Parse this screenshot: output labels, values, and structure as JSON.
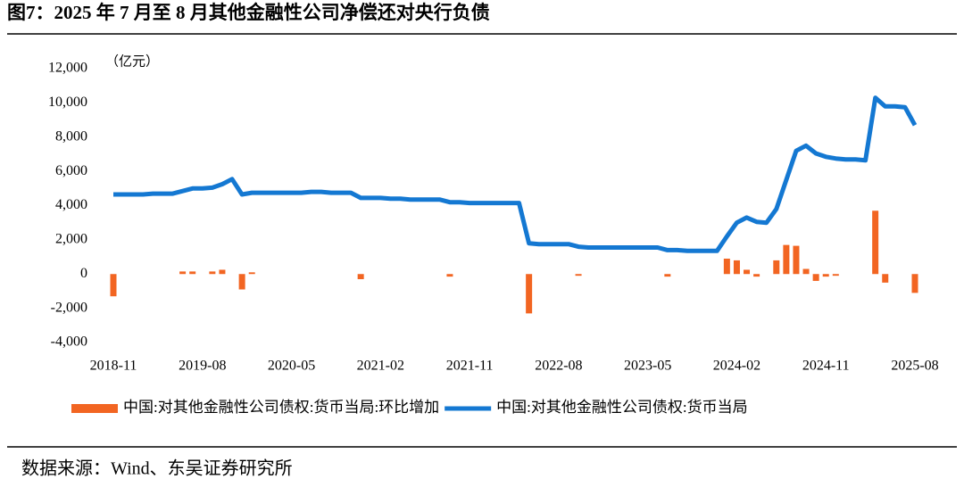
{
  "chart_data": {
    "type": "combo",
    "title": "图7：2025 年 7 月至 8 月其他金融性公司净偿还对央行负债",
    "unit": "（亿元）",
    "source": "数据来源：Wind、东吴证券研究所",
    "categories": [
      "2018-11",
      null,
      null,
      null,
      null,
      null,
      null,
      null,
      null,
      "2019-08",
      null,
      null,
      null,
      null,
      null,
      null,
      null,
      null,
      "2020-05",
      null,
      null,
      null,
      null,
      null,
      null,
      null,
      null,
      "2021-02",
      null,
      null,
      null,
      null,
      null,
      null,
      null,
      null,
      "2021-11",
      null,
      null,
      null,
      null,
      null,
      null,
      null,
      null,
      "2022-08",
      null,
      null,
      null,
      null,
      null,
      null,
      null,
      null,
      "2023-05",
      null,
      null,
      null,
      null,
      null,
      null,
      null,
      null,
      "2024-02",
      null,
      null,
      null,
      null,
      null,
      null,
      null,
      null,
      "2024-11",
      null,
      null,
      null,
      null,
      null,
      null,
      null,
      null,
      "2025-08"
    ],
    "series": [
      {
        "name": "中国:对其他金融性公司债权:货币当局:环比增加",
        "type": "bar",
        "color": "#f26522",
        "values": [
          -1300,
          0,
          0,
          0,
          0,
          0,
          0,
          150,
          150,
          0,
          150,
          250,
          0,
          -900,
          100,
          0,
          0,
          0,
          0,
          0,
          0,
          0,
          0,
          0,
          0,
          -300,
          0,
          0,
          0,
          0,
          0,
          0,
          0,
          0,
          -150,
          0,
          0,
          0,
          0,
          0,
          0,
          0,
          -2300,
          0,
          0,
          0,
          0,
          -100,
          0,
          0,
          0,
          0,
          0,
          0,
          0,
          0,
          -150,
          0,
          0,
          0,
          0,
          0,
          900,
          800,
          250,
          -150,
          0,
          800,
          1700,
          1650,
          300,
          -400,
          -150,
          -100,
          0,
          0,
          0,
          3700,
          -500,
          0,
          0,
          -1100
        ]
      },
      {
        "name": "中国:对其他金融性公司债权:货币当局",
        "type": "line",
        "color": "#1478d2",
        "values": [
          4650,
          4650,
          4650,
          4650,
          4700,
          4700,
          4700,
          4850,
          5000,
          5000,
          5050,
          5250,
          5550,
          4650,
          4750,
          4750,
          4750,
          4750,
          4750,
          4750,
          4800,
          4800,
          4750,
          4750,
          4750,
          4450,
          4450,
          4450,
          4400,
          4400,
          4350,
          4350,
          4350,
          4350,
          4200,
          4200,
          4150,
          4150,
          4150,
          4150,
          4150,
          4150,
          1800,
          1750,
          1750,
          1750,
          1750,
          1600,
          1550,
          1550,
          1550,
          1550,
          1550,
          1550,
          1550,
          1550,
          1400,
          1400,
          1350,
          1350,
          1350,
          1350,
          2200,
          3000,
          3300,
          3050,
          3000,
          3800,
          5500,
          7200,
          7500,
          7050,
          6850,
          6750,
          6700,
          6700,
          6650,
          10300,
          9800,
          9800,
          9750,
          8700
        ]
      }
    ],
    "ylim": [
      -4000,
      12000
    ],
    "yticks": [
      {
        "value": -4000,
        "label": "-4,000"
      },
      {
        "value": -2000,
        "label": "-2,000"
      },
      0,
      {
        "value": 2000,
        "label": "2,000"
      },
      {
        "value": 4000,
        "label": "4,000"
      },
      {
        "value": 6000,
        "label": "6,000"
      },
      {
        "value": 8000,
        "label": "8,000"
      },
      {
        "value": 10000,
        "label": "10,000"
      },
      {
        "value": 12000,
        "label": "12,000"
      }
    ]
  }
}
